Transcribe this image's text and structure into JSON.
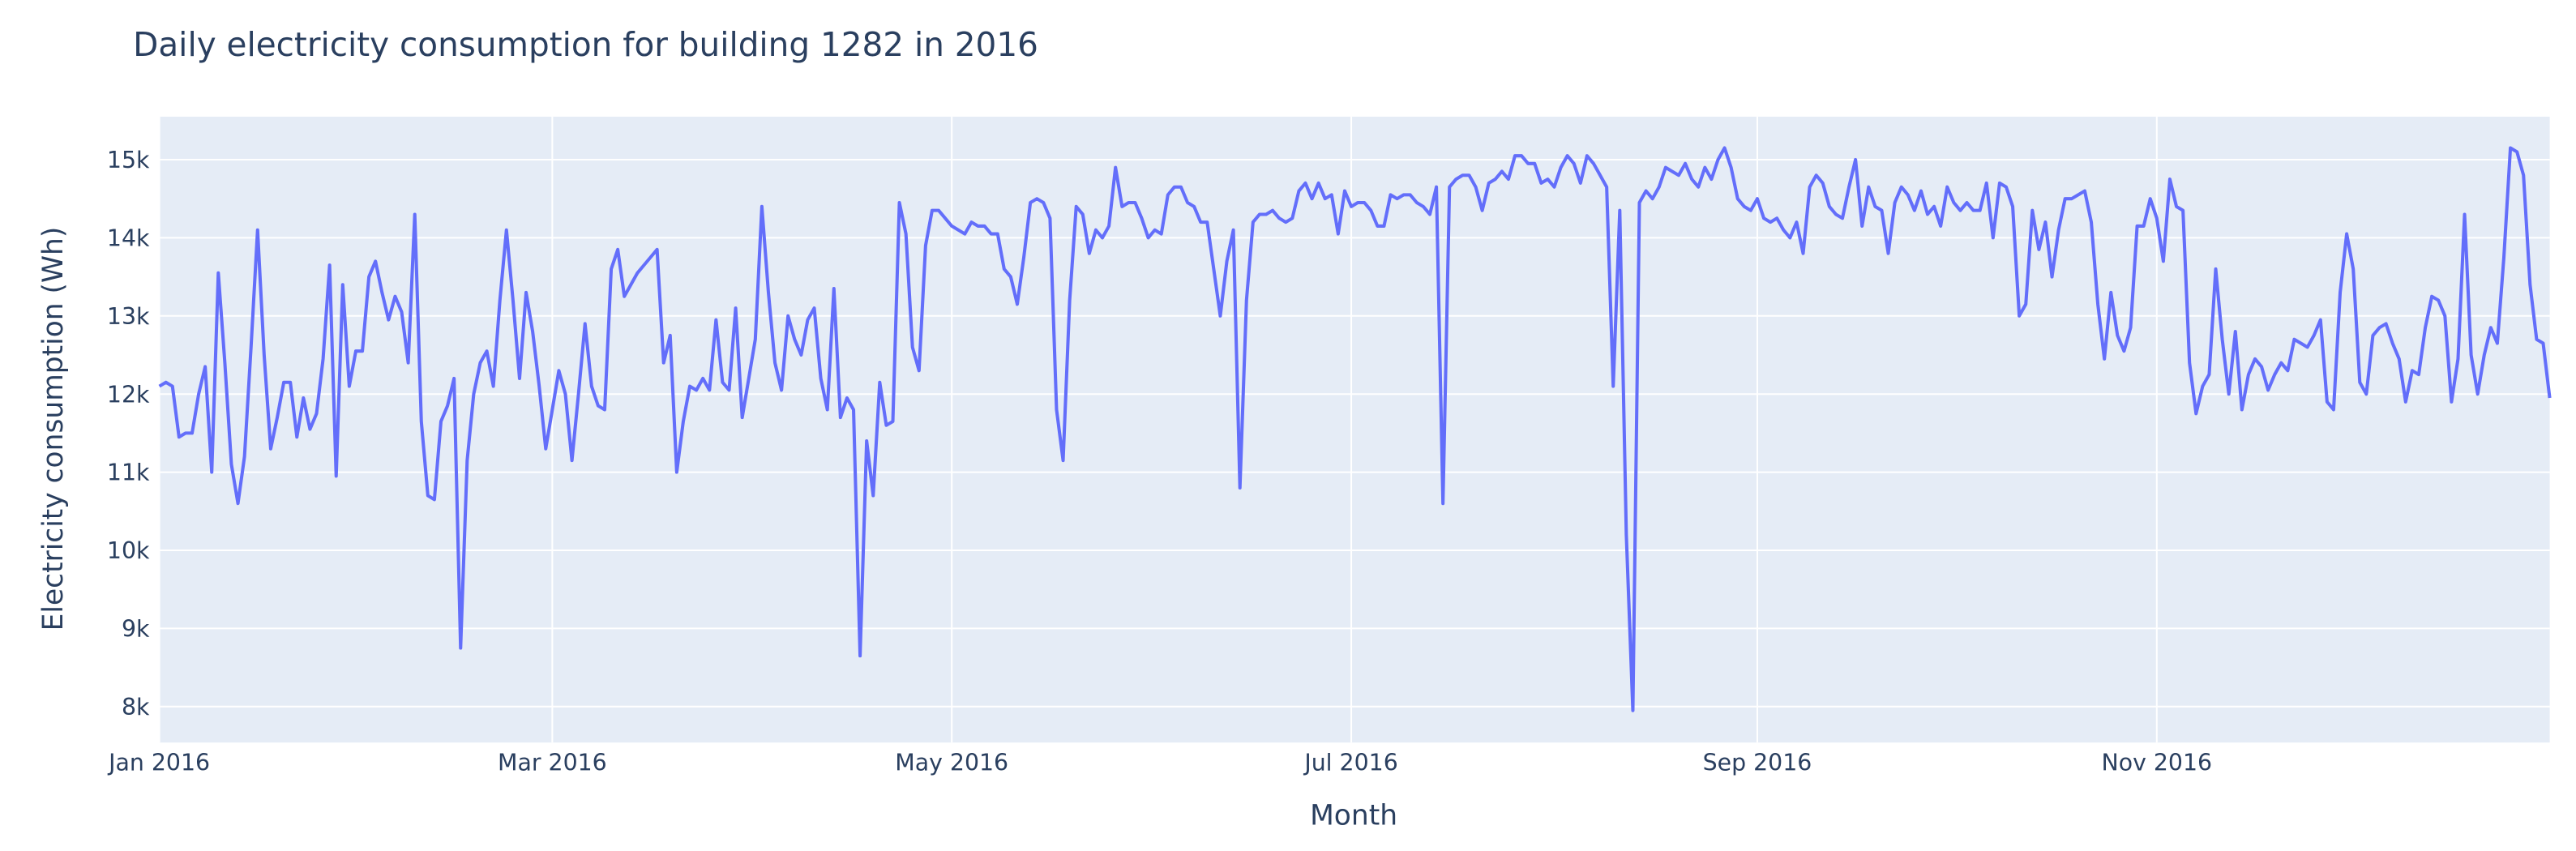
{
  "chart_data": {
    "type": "line",
    "title": "Daily electricity consumption for building 1282 in 2016",
    "x_label": "Month",
    "y_label": "Electricity consumption (Wh)",
    "color": "#636efa",
    "grid": true,
    "xlim": [
      "2016-01-01",
      "2016-12-31"
    ],
    "xticks": [
      {
        "value": "2016-01-01",
        "label": "Jan 2016"
      },
      {
        "value": "2016-03-01",
        "label": "Mar 2016"
      },
      {
        "value": "2016-05-01",
        "label": "May 2016"
      },
      {
        "value": "2016-07-01",
        "label": "Jul 2016"
      },
      {
        "value": "2016-09-01",
        "label": "Sep 2016"
      },
      {
        "value": "2016-11-01",
        "label": "Nov 2016"
      }
    ],
    "ylim": [
      7540,
      15550
    ],
    "yticks": [
      {
        "value": 8000,
        "label": "8k"
      },
      {
        "value": 9000,
        "label": "9k"
      },
      {
        "value": 10000,
        "label": "10k"
      },
      {
        "value": 11000,
        "label": "11k"
      },
      {
        "value": 12000,
        "label": "12k"
      },
      {
        "value": 13000,
        "label": "13k"
      },
      {
        "value": 14000,
        "label": "14k"
      },
      {
        "value": 15000,
        "label": "15k"
      }
    ],
    "x": [
      "2016-01-01",
      "2016-01-02",
      "2016-01-03",
      "2016-01-04",
      "2016-01-05",
      "2016-01-06",
      "2016-01-07",
      "2016-01-08",
      "2016-01-09",
      "2016-01-10",
      "2016-01-11",
      "2016-01-12",
      "2016-01-13",
      "2016-01-14",
      "2016-01-15",
      "2016-01-16",
      "2016-01-17",
      "2016-01-18",
      "2016-01-19",
      "2016-01-20",
      "2016-01-21",
      "2016-01-22",
      "2016-01-23",
      "2016-01-24",
      "2016-01-25",
      "2016-01-26",
      "2016-01-27",
      "2016-01-28",
      "2016-01-29",
      "2016-01-30",
      "2016-01-31",
      "2016-02-01",
      "2016-02-02",
      "2016-02-03",
      "2016-02-04",
      "2016-02-05",
      "2016-02-06",
      "2016-02-07",
      "2016-02-08",
      "2016-02-09",
      "2016-02-10",
      "2016-02-11",
      "2016-02-12",
      "2016-02-13",
      "2016-02-14",
      "2016-02-15",
      "2016-02-16",
      "2016-02-17",
      "2016-02-18",
      "2016-02-19",
      "2016-02-20",
      "2016-02-21",
      "2016-02-22",
      "2016-02-23",
      "2016-02-24",
      "2016-02-25",
      "2016-02-26",
      "2016-02-27",
      "2016-02-28",
      "2016-02-29",
      "2016-03-01",
      "2016-03-02",
      "2016-03-03",
      "2016-03-04",
      "2016-03-05",
      "2016-03-06",
      "2016-03-07",
      "2016-03-08",
      "2016-03-09",
      "2016-03-10",
      "2016-03-11",
      "2016-03-12",
      "2016-03-13",
      "2016-03-14",
      "2016-03-15",
      "2016-03-16",
      "2016-03-17",
      "2016-03-18",
      "2016-03-19",
      "2016-03-20",
      "2016-03-21",
      "2016-03-22",
      "2016-03-23",
      "2016-03-24",
      "2016-03-25",
      "2016-03-26",
      "2016-03-27",
      "2016-03-28",
      "2016-03-29",
      "2016-03-30",
      "2016-03-31",
      "2016-04-01",
      "2016-04-02",
      "2016-04-03",
      "2016-04-04",
      "2016-04-05",
      "2016-04-06",
      "2016-04-07",
      "2016-04-08",
      "2016-04-09",
      "2016-04-10",
      "2016-04-11",
      "2016-04-12",
      "2016-04-13",
      "2016-04-14",
      "2016-04-15",
      "2016-04-16",
      "2016-04-17",
      "2016-04-18",
      "2016-04-19",
      "2016-04-20",
      "2016-04-21",
      "2016-04-22",
      "2016-04-23",
      "2016-04-24",
      "2016-04-25",
      "2016-04-26",
      "2016-04-27",
      "2016-04-28",
      "2016-04-29",
      "2016-04-30",
      "2016-05-01",
      "2016-05-02",
      "2016-05-03",
      "2016-05-04",
      "2016-05-05",
      "2016-05-06",
      "2016-05-07",
      "2016-05-08",
      "2016-05-09",
      "2016-05-10",
      "2016-05-11",
      "2016-05-12",
      "2016-05-13",
      "2016-05-14",
      "2016-05-15",
      "2016-05-16",
      "2016-05-17",
      "2016-05-18",
      "2016-05-19",
      "2016-05-20",
      "2016-05-21",
      "2016-05-22",
      "2016-05-23",
      "2016-05-24",
      "2016-05-25",
      "2016-05-26",
      "2016-05-27",
      "2016-05-28",
      "2016-05-29",
      "2016-05-30",
      "2016-05-31",
      "2016-06-01",
      "2016-06-02",
      "2016-06-03",
      "2016-06-04",
      "2016-06-05",
      "2016-06-06",
      "2016-06-07",
      "2016-06-08",
      "2016-06-09",
      "2016-06-10",
      "2016-06-11",
      "2016-06-12",
      "2016-06-13",
      "2016-06-14",
      "2016-06-15",
      "2016-06-16",
      "2016-06-17",
      "2016-06-18",
      "2016-06-19",
      "2016-06-20",
      "2016-06-21",
      "2016-06-22",
      "2016-06-23",
      "2016-06-24",
      "2016-06-25",
      "2016-06-26",
      "2016-06-27",
      "2016-06-28",
      "2016-06-29",
      "2016-06-30",
      "2016-07-01",
      "2016-07-02",
      "2016-07-03",
      "2016-07-04",
      "2016-07-05",
      "2016-07-06",
      "2016-07-07",
      "2016-07-08",
      "2016-07-09",
      "2016-07-10",
      "2016-07-11",
      "2016-07-12",
      "2016-07-13",
      "2016-07-14",
      "2016-07-15",
      "2016-07-16",
      "2016-07-17",
      "2016-07-18",
      "2016-07-19",
      "2016-07-20",
      "2016-07-21",
      "2016-07-22",
      "2016-07-23",
      "2016-07-24",
      "2016-07-25",
      "2016-07-26",
      "2016-07-27",
      "2016-07-28",
      "2016-07-29",
      "2016-07-30",
      "2016-07-31",
      "2016-08-01",
      "2016-08-02",
      "2016-08-03",
      "2016-08-04",
      "2016-08-05",
      "2016-08-06",
      "2016-08-07",
      "2016-08-08",
      "2016-08-09",
      "2016-08-10",
      "2016-08-11",
      "2016-08-12",
      "2016-08-13",
      "2016-08-14",
      "2016-08-15",
      "2016-08-16",
      "2016-08-17",
      "2016-08-18",
      "2016-08-19",
      "2016-08-20",
      "2016-08-21",
      "2016-08-22",
      "2016-08-23",
      "2016-08-24",
      "2016-08-25",
      "2016-08-26",
      "2016-08-27",
      "2016-08-28",
      "2016-08-29",
      "2016-08-30",
      "2016-08-31",
      "2016-09-01",
      "2016-09-02",
      "2016-09-03",
      "2016-09-04",
      "2016-09-05",
      "2016-09-06",
      "2016-09-07",
      "2016-09-08",
      "2016-09-09",
      "2016-09-10",
      "2016-09-11",
      "2016-09-12",
      "2016-09-13",
      "2016-09-14",
      "2016-09-15",
      "2016-09-16",
      "2016-09-17",
      "2016-09-18",
      "2016-09-19",
      "2016-09-20",
      "2016-09-21",
      "2016-09-22",
      "2016-09-23",
      "2016-09-24",
      "2016-09-25",
      "2016-09-26",
      "2016-09-27",
      "2016-09-28",
      "2016-09-29",
      "2016-09-30",
      "2016-10-01",
      "2016-10-02",
      "2016-10-03",
      "2016-10-04",
      "2016-10-05",
      "2016-10-06",
      "2016-10-07",
      "2016-10-08",
      "2016-10-09",
      "2016-10-10",
      "2016-10-11",
      "2016-10-12",
      "2016-10-13",
      "2016-10-14",
      "2016-10-15",
      "2016-10-16",
      "2016-10-17",
      "2016-10-18",
      "2016-10-19",
      "2016-10-20",
      "2016-10-21",
      "2016-10-22",
      "2016-10-23",
      "2016-10-24",
      "2016-10-25",
      "2016-10-26",
      "2016-10-27",
      "2016-10-28",
      "2016-10-29",
      "2016-10-30",
      "2016-10-31",
      "2016-11-01",
      "2016-11-02",
      "2016-11-03",
      "2016-11-04",
      "2016-11-05",
      "2016-11-06",
      "2016-11-07",
      "2016-11-08",
      "2016-11-09",
      "2016-11-10",
      "2016-11-11",
      "2016-11-12",
      "2016-11-13",
      "2016-11-14",
      "2016-11-15",
      "2016-11-16",
      "2016-11-17",
      "2016-11-18",
      "2016-11-19",
      "2016-11-20",
      "2016-11-21",
      "2016-11-22",
      "2016-11-23",
      "2016-11-24",
      "2016-11-25",
      "2016-11-26",
      "2016-11-27",
      "2016-11-28",
      "2016-11-29",
      "2016-11-30",
      "2016-12-01",
      "2016-12-02",
      "2016-12-03",
      "2016-12-04",
      "2016-12-05",
      "2016-12-06",
      "2016-12-07",
      "2016-12-08",
      "2016-12-09",
      "2016-12-10",
      "2016-12-11",
      "2016-12-12",
      "2016-12-13",
      "2016-12-14",
      "2016-12-15",
      "2016-12-16",
      "2016-12-17",
      "2016-12-18",
      "2016-12-19",
      "2016-12-20",
      "2016-12-21",
      "2016-12-22",
      "2016-12-23",
      "2016-12-24",
      "2016-12-25",
      "2016-12-26",
      "2016-12-27",
      "2016-12-28",
      "2016-12-29",
      "2016-12-30",
      "2016-12-31"
    ],
    "values": [
      12100,
      12150,
      12100,
      11450,
      11500,
      11500,
      12000,
      12350,
      11000,
      13550,
      12400,
      11100,
      10600,
      11200,
      12600,
      14100,
      12500,
      11300,
      11700,
      12150,
      12150,
      11450,
      11950,
      11550,
      11750,
      12450,
      13650,
      10950,
      13400,
      12100,
      12550,
      12550,
      13500,
      13700,
      13300,
      12950,
      13250,
      13050,
      12400,
      14300,
      11650,
      10700,
      10650,
      11650,
      11850,
      12200,
      8750,
      11150,
      12000,
      12400,
      12550,
      12100,
      13200,
      14100,
      13200,
      12200,
      13300,
      12800,
      12100,
      11300,
      11800,
      12300,
      12000,
      11150,
      12000,
      12900,
      12100,
      11850,
      11800,
      13600,
      13850,
      13250,
      13400,
      13550,
      13650,
      13750,
      13850,
      12400,
      12750,
      11000,
      11650,
      12100,
      12050,
      12200,
      12050,
      12950,
      12150,
      12050,
      13100,
      11700,
      12200,
      12700,
      14400,
      13300,
      12400,
      12050,
      13000,
      12700,
      12500,
      12950,
      13100,
      12200,
      11800,
      13350,
      11700,
      11950,
      11800,
      8650,
      11400,
      10700,
      12150,
      11600,
      11650,
      14450,
      14050,
      12600,
      12300,
      13900,
      14350,
      14350,
      14250,
      14150,
      14100,
      14050,
      14200,
      14150,
      14150,
      14050,
      14050,
      13600,
      13500,
      13150,
      13750,
      14450,
      14500,
      14450,
      14250,
      11800,
      11150,
      13200,
      14400,
      14300,
      13800,
      14100,
      14000,
      14150,
      14900,
      14400,
      14450,
      14450,
      14250,
      14000,
      14100,
      14050,
      14550,
      14650,
      14650,
      14450,
      14400,
      14200,
      14200,
      13600,
      13000,
      13700,
      14100,
      10800,
      13200,
      14200,
      14300,
      14300,
      14350,
      14250,
      14200,
      14250,
      14600,
      14700,
      14500,
      14700,
      14500,
      14550,
      14050,
      14600,
      14400,
      14450,
      14450,
      14350,
      14150,
      14150,
      14550,
      14500,
      14550,
      14550,
      14450,
      14400,
      14300,
      14650,
      10600,
      14650,
      14750,
      14800,
      14800,
      14650,
      14350,
      14700,
      14750,
      14850,
      14750,
      15050,
      15050,
      14950,
      14950,
      14700,
      14750,
      14650,
      14900,
      15050,
      14950,
      14700,
      15050,
      14950,
      14800,
      14650,
      12100,
      14350,
      10200,
      7950,
      14450,
      14600,
      14500,
      14650,
      14900,
      14850,
      14800,
      14950,
      14750,
      14650,
      14900,
      14750,
      15000,
      15150,
      14900,
      14500,
      14400,
      14350,
      14500,
      14250,
      14200,
      14250,
      14100,
      14000,
      14200,
      13800,
      14650,
      14800,
      14700,
      14400,
      14300,
      14250,
      14650,
      15000,
      14150,
      14650,
      14400,
      14350,
      13800,
      14450,
      14650,
      14550,
      14350,
      14600,
      14300,
      14400,
      14150,
      14650,
      14450,
      14350,
      14450,
      14350,
      14350,
      14700,
      14000,
      14700,
      14650,
      14400,
      13000,
      13150,
      14350,
      13850,
      14200,
      13500,
      14100,
      14500,
      14500,
      14550,
      14600,
      14200,
      13150,
      12450,
      13300,
      12750,
      12550,
      12850,
      14150,
      14150,
      14500,
      14250,
      13700,
      14750,
      14400,
      14350,
      12400,
      11750,
      12100,
      12250,
      13600,
      12700,
      12000,
      12800,
      11800,
      12250,
      12450,
      12350,
      12050,
      12250,
      12400,
      12300,
      12700,
      12650,
      12600,
      12750,
      12950,
      11900,
      11800,
      13300,
      14050,
      13600,
      12150,
      12000,
      12750,
      12850,
      12900,
      12650,
      12450,
      11900,
      12300,
      12250,
      12850,
      13250,
      13200,
      13000,
      11900,
      12450,
      14300,
      12500,
      12000,
      12500,
      12850,
      12650,
      13750,
      15150,
      15100,
      14800,
      13400,
      12700,
      12650,
      11950
    ]
  }
}
